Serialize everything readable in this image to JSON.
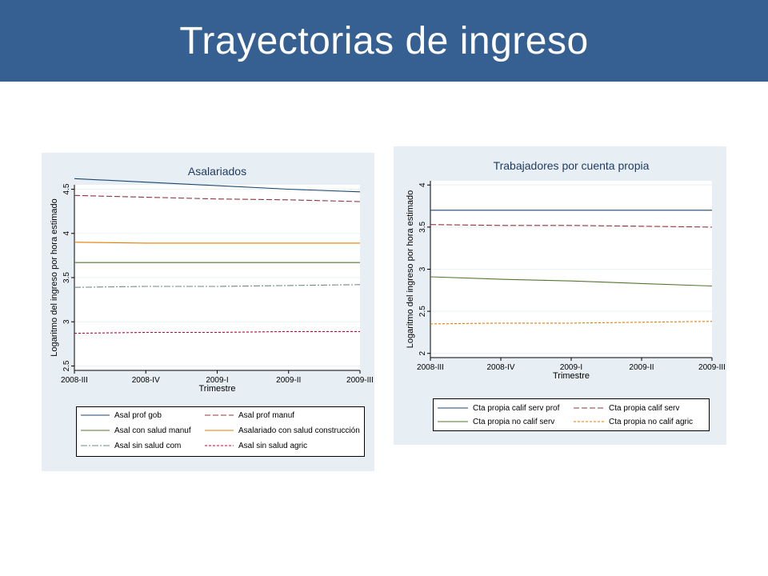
{
  "slide": {
    "title": "Trayectorias de ingreso"
  },
  "colors": {
    "header_bg": "#366092",
    "panel_bg": "#e8eff4",
    "grid": "#eaf2f3"
  },
  "chart_data": [
    {
      "type": "line",
      "title": "Asalariados",
      "xlabel": "Trimestre",
      "ylabel": "Logaritmo del ingreso por hora estimado",
      "categories": [
        "2008-III",
        "2008-IV",
        "2009-I",
        "2009-II",
        "2009-III"
      ],
      "ylim": [
        2.45,
        4.55
      ],
      "yticks": [
        2.5,
        3,
        3.5,
        4,
        4.5
      ],
      "ytick_labels": [
        "2.5",
        "3",
        "3.5",
        "4",
        "4.5"
      ],
      "grid": true,
      "legend_position": "bottom",
      "series": [
        {
          "name": "Asal prof gob",
          "values": [
            4.62,
            4.58,
            4.54,
            4.5,
            4.47
          ],
          "color": "#1a476f",
          "dash": ""
        },
        {
          "name": "Asal prof manuf",
          "values": [
            4.43,
            4.41,
            4.39,
            4.38,
            4.36
          ],
          "color": "#90353b",
          "dash": "7,3"
        },
        {
          "name": "Asal con salud manuf",
          "values": [
            3.67,
            3.67,
            3.67,
            3.67,
            3.67
          ],
          "color": "#55752f",
          "dash": ""
        },
        {
          "name": "Asalariado con salud construcción",
          "values": [
            3.9,
            3.89,
            3.89,
            3.89,
            3.89
          ],
          "color": "#e37e00",
          "dash": ""
        },
        {
          "name": "Asal sin salud com",
          "values": [
            3.39,
            3.4,
            3.4,
            3.41,
            3.42
          ],
          "color": "#6e8e84",
          "dash": "8,2,2,2"
        },
        {
          "name": "Asal sin salud agric",
          "values": [
            2.87,
            2.88,
            2.88,
            2.89,
            2.89
          ],
          "color": "#c10534",
          "dash": "3,2"
        }
      ]
    },
    {
      "type": "line",
      "title": "Trabajadores por cuenta propia",
      "xlabel": "Trimestre",
      "ylabel": "Logaritmo del ingreso por hora estimado",
      "categories": [
        "2008-III",
        "2008-IV",
        "2009-I",
        "2009-II",
        "2009-III"
      ],
      "ylim": [
        1.95,
        4.05
      ],
      "yticks": [
        2,
        2.5,
        3,
        3.5,
        4
      ],
      "ytick_labels": [
        "2",
        "2.5",
        "3",
        "3.5",
        "4"
      ],
      "grid": true,
      "legend_position": "bottom",
      "series": [
        {
          "name": "Cta propia calif serv prof",
          "values": [
            3.7,
            3.7,
            3.7,
            3.7,
            3.7
          ],
          "color": "#1a476f",
          "dash": ""
        },
        {
          "name": "Cta propia calif serv",
          "values": [
            3.53,
            3.52,
            3.52,
            3.51,
            3.5
          ],
          "color": "#90353b",
          "dash": "7,3"
        },
        {
          "name": "Cta propia no calif serv",
          "values": [
            2.91,
            2.88,
            2.86,
            2.83,
            2.8
          ],
          "color": "#55752f",
          "dash": ""
        },
        {
          "name": "Cta propia no calif agric",
          "values": [
            2.35,
            2.36,
            2.36,
            2.37,
            2.38
          ],
          "color": "#e37e00",
          "dash": "3,2"
        }
      ]
    }
  ]
}
